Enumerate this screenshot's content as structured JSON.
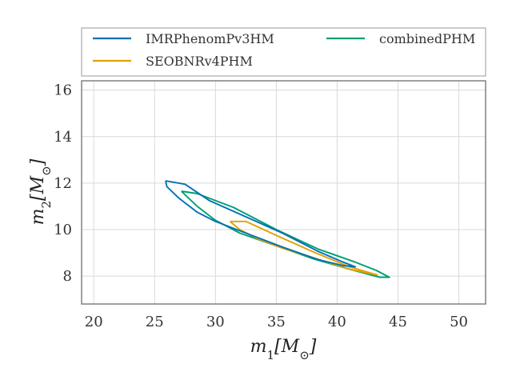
{
  "chart_data": {
    "type": "line",
    "title": "",
    "xlabel": "m_1[M_⊙]",
    "ylabel": "m_2[M_⊙]",
    "xlim": [
      19,
      52.2
    ],
    "ylim": [
      6.8,
      16.4
    ],
    "x_ticks": [
      20,
      25,
      30,
      35,
      40,
      45,
      50
    ],
    "y_ticks": [
      8,
      10,
      12,
      14,
      16
    ],
    "grid": true,
    "legend_placement": "top-outside",
    "series": [
      {
        "name": "IMRPhenomPv3HM",
        "color": "#0072B2",
        "x": [
          25.9,
          27.5,
          29.5,
          32.5,
          35.5,
          38.5,
          40.5,
          41.5,
          40.5,
          38.5,
          35.5,
          32.5,
          30.0,
          28.5,
          27.0,
          26.0,
          25.9
        ],
        "y": [
          12.1,
          11.95,
          11.25,
          10.55,
          9.85,
          9.05,
          8.6,
          8.4,
          8.45,
          8.7,
          9.25,
          9.85,
          10.35,
          10.75,
          11.35,
          11.85,
          12.1
        ]
      },
      {
        "name": "SEOBNRv4PHM",
        "color": "#E69F00",
        "x": [
          31.2,
          32.5,
          35.0,
          38.0,
          41.0,
          43.3,
          42.8,
          41.0,
          38.0,
          35.5,
          33.5,
          32.0,
          31.2
        ],
        "y": [
          10.35,
          10.35,
          9.75,
          9.05,
          8.4,
          8.05,
          8.1,
          8.3,
          8.8,
          9.2,
          9.6,
          10.0,
          10.35
        ]
      },
      {
        "name": "combinedPHM",
        "color": "#009E73",
        "x": [
          27.2,
          28.5,
          31.5,
          35.0,
          38.5,
          41.5,
          43.2,
          44.3,
          43.5,
          41.0,
          38.0,
          35.0,
          32.0,
          30.0,
          28.5,
          27.2
        ],
        "y": [
          11.65,
          11.55,
          10.95,
          10.0,
          9.15,
          8.6,
          8.25,
          7.95,
          7.95,
          8.3,
          8.75,
          9.3,
          9.85,
          10.4,
          11.0,
          11.65
        ]
      }
    ]
  }
}
